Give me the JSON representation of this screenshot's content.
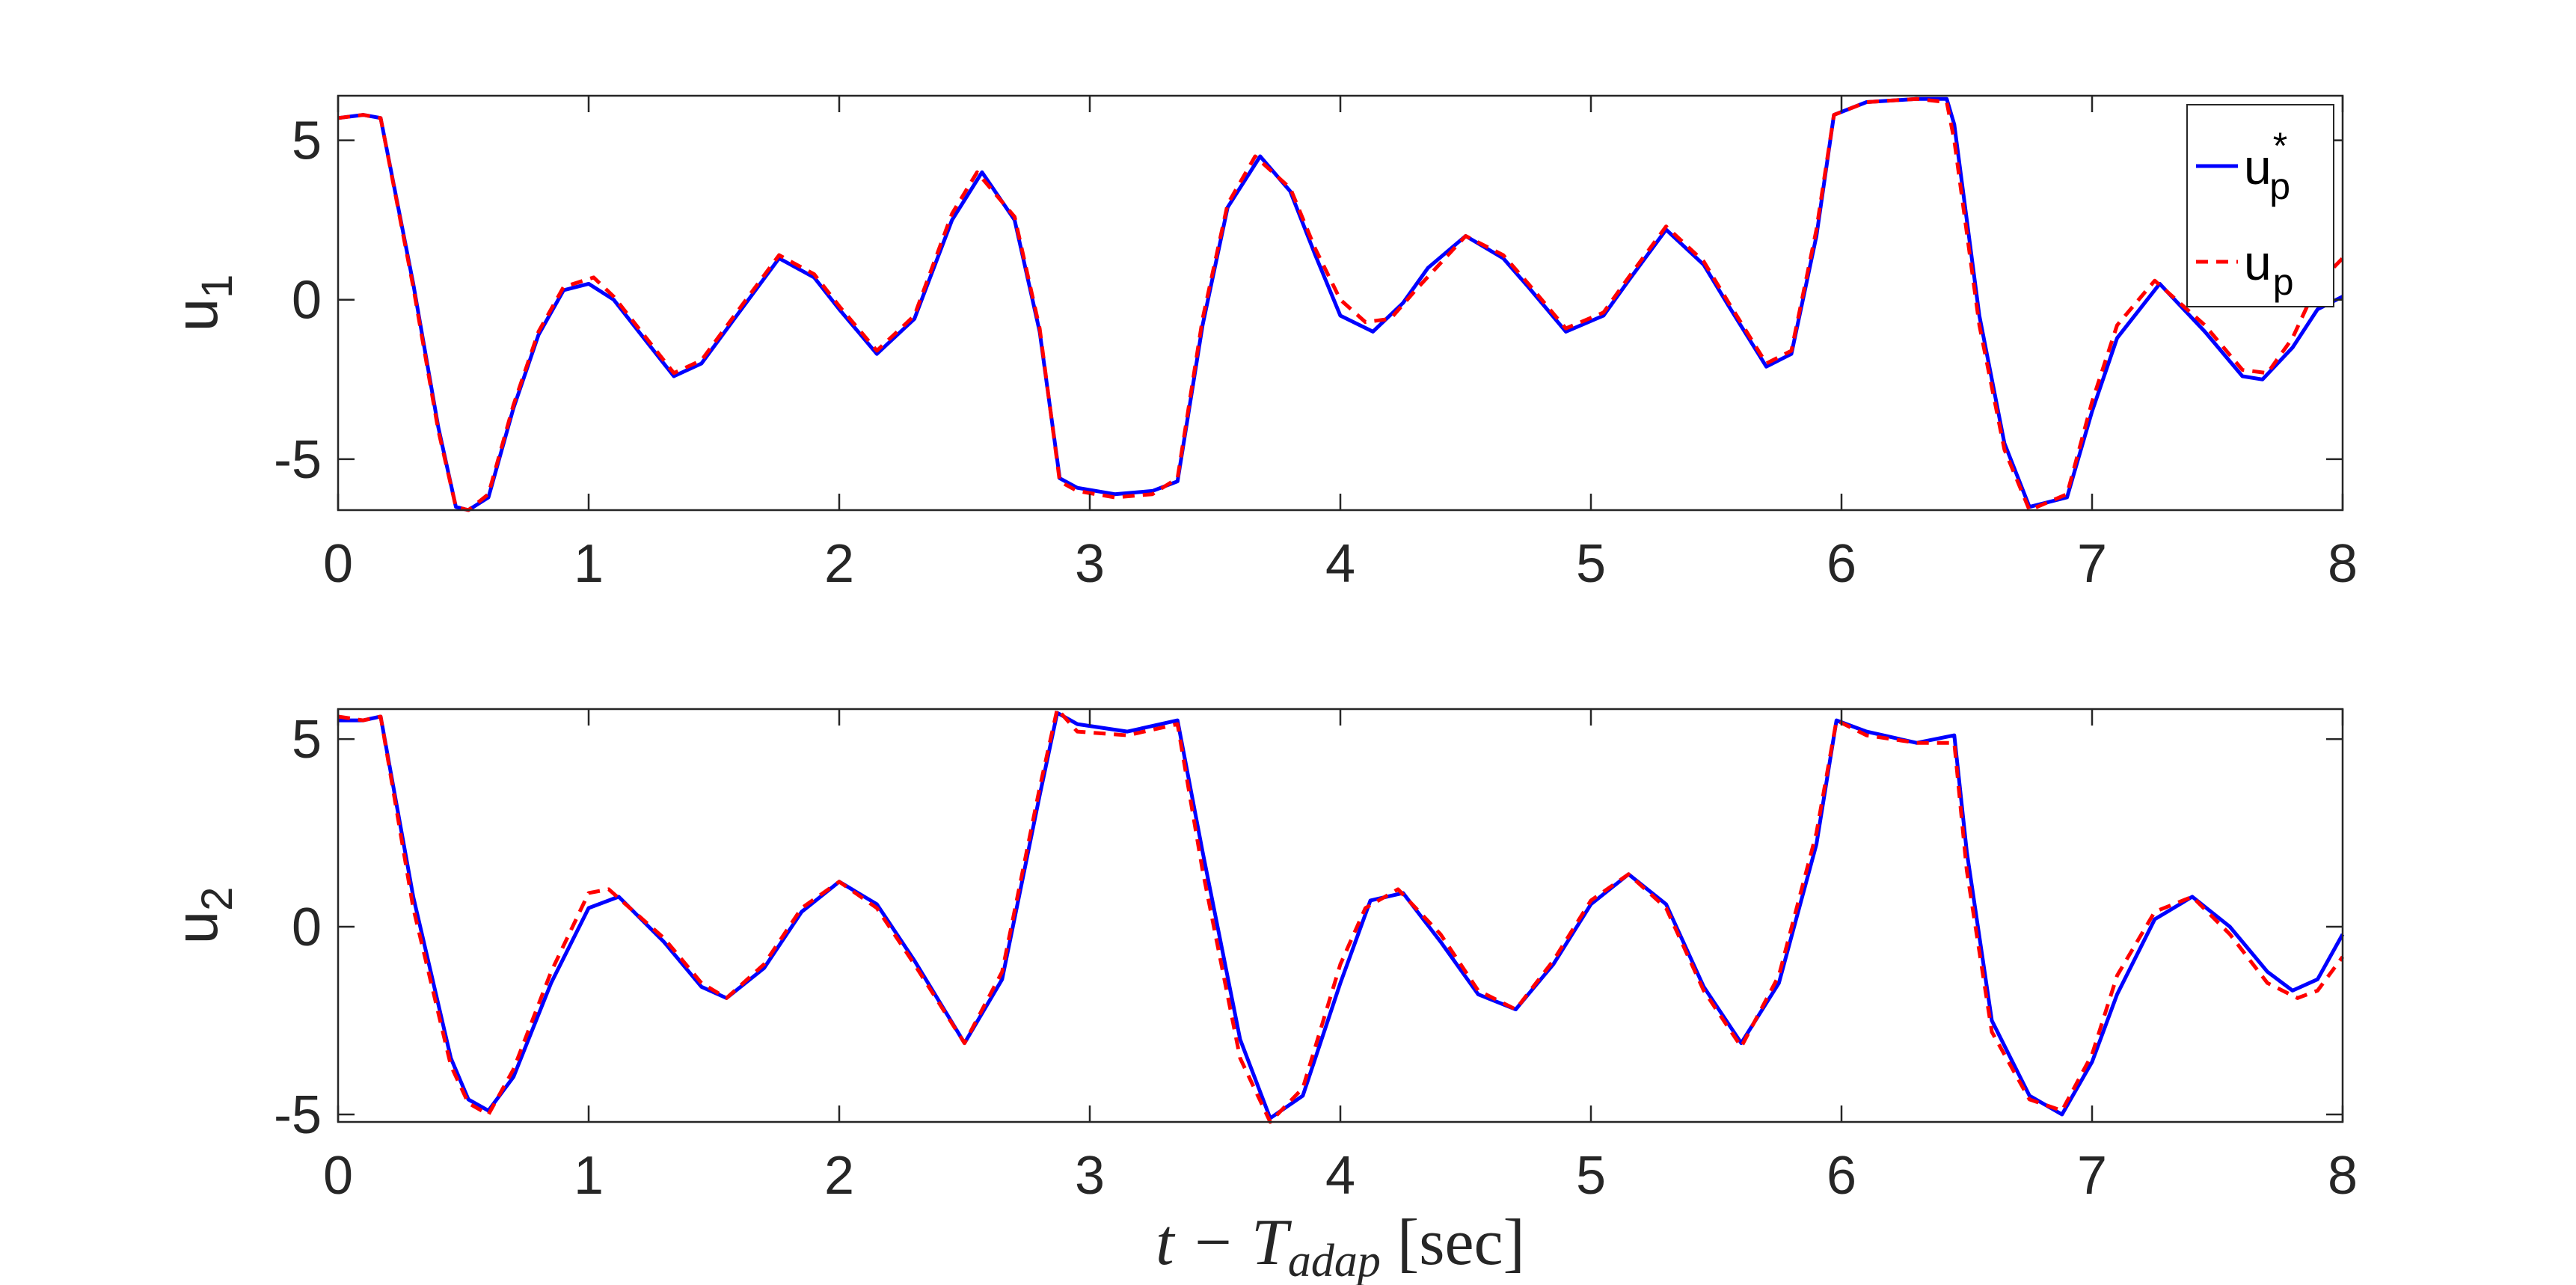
{
  "chart_data": [
    {
      "type": "line",
      "ylabel": "u",
      "ylabel_sub": "1",
      "xlim": [
        0,
        8
      ],
      "ylim": [
        -6.6,
        6.4
      ],
      "xticks": [
        0,
        1,
        2,
        3,
        4,
        5,
        6,
        7,
        8
      ],
      "yticks": [
        -5,
        0,
        5
      ],
      "grid": false,
      "legend": {
        "placement": "top-right",
        "entries": [
          {
            "base": "u",
            "sub": "p",
            "sup": "*"
          },
          {
            "base": "u",
            "sub": "p",
            "sup": ""
          }
        ]
      },
      "series": [
        {
          "color": "#0000ff",
          "dash": "solid",
          "x": [
            0,
            0.1,
            0.17,
            0.3,
            0.4,
            0.47,
            0.52,
            0.6,
            0.7,
            0.8,
            0.9,
            1.0,
            1.1,
            1.2,
            1.34,
            1.45,
            1.6,
            1.76,
            1.9,
            2.0,
            2.15,
            2.3,
            2.45,
            2.57,
            2.7,
            2.8,
            2.88,
            2.95,
            3.1,
            3.25,
            3.35,
            3.45,
            3.55,
            3.68,
            3.8,
            3.9,
            4.0,
            4.13,
            4.25,
            4.35,
            4.5,
            4.65,
            4.75,
            4.9,
            5.05,
            5.15,
            5.3,
            5.45,
            5.55,
            5.7,
            5.8,
            5.9,
            5.97,
            6.1,
            6.3,
            6.42,
            6.45,
            6.55,
            6.65,
            6.75,
            6.9,
            7.0,
            7.1,
            7.27,
            7.45,
            7.6,
            7.68,
            7.8,
            7.9,
            8.0
          ],
          "values": [
            5.7,
            5.8,
            5.7,
            0.5,
            -4.0,
            -6.5,
            -6.6,
            -6.2,
            -3.4,
            -1.1,
            0.3,
            0.5,
            0.0,
            -1.0,
            -2.4,
            -2.0,
            -0.4,
            1.3,
            0.7,
            -0.3,
            -1.7,
            -0.6,
            2.5,
            4.0,
            2.5,
            -1.0,
            -5.6,
            -5.9,
            -6.1,
            -6.0,
            -5.7,
            -0.8,
            2.9,
            4.5,
            3.4,
            1.4,
            -0.5,
            -1.0,
            -0.1,
            1.0,
            2.0,
            1.3,
            0.4,
            -1.0,
            -0.5,
            0.6,
            2.2,
            1.1,
            -0.2,
            -2.1,
            -1.7,
            2.0,
            5.8,
            6.2,
            6.3,
            6.3,
            5.5,
            -0.5,
            -4.5,
            -6.5,
            -6.2,
            -3.5,
            -1.2,
            0.5,
            -1.0,
            -2.4,
            -2.5,
            -1.5,
            -0.3,
            0.1
          ]
        },
        {
          "color": "#ff0000",
          "dash": "dashed",
          "x": [
            0,
            0.1,
            0.17,
            0.3,
            0.4,
            0.47,
            0.52,
            0.6,
            0.7,
            0.8,
            0.9,
            1.02,
            1.1,
            1.2,
            1.34,
            1.45,
            1.6,
            1.76,
            1.9,
            2.0,
            2.15,
            2.3,
            2.45,
            2.55,
            2.7,
            2.8,
            2.88,
            2.95,
            3.1,
            3.25,
            3.35,
            3.45,
            3.55,
            3.66,
            3.8,
            3.9,
            4.0,
            4.1,
            4.2,
            4.3,
            4.5,
            4.65,
            4.75,
            4.9,
            5.05,
            5.15,
            5.3,
            5.45,
            5.55,
            5.7,
            5.8,
            5.9,
            5.97,
            6.1,
            6.3,
            6.42,
            6.45,
            6.55,
            6.65,
            6.75,
            6.9,
            7.0,
            7.1,
            7.25,
            7.45,
            7.6,
            7.7,
            7.8,
            7.9,
            8.0
          ],
          "values": [
            5.7,
            5.8,
            5.7,
            0.4,
            -4.1,
            -6.5,
            -6.6,
            -6.1,
            -3.3,
            -1.0,
            0.4,
            0.7,
            0.1,
            -0.9,
            -2.3,
            -1.9,
            -0.3,
            1.4,
            0.8,
            -0.2,
            -1.6,
            -0.5,
            2.7,
            4.0,
            2.6,
            -0.9,
            -5.7,
            -6.0,
            -6.2,
            -6.1,
            -5.6,
            -0.6,
            3.0,
            4.5,
            3.5,
            1.6,
            0.0,
            -0.7,
            -0.6,
            0.3,
            2.0,
            1.4,
            0.5,
            -0.9,
            -0.4,
            0.7,
            2.3,
            1.2,
            -0.1,
            -2.0,
            -1.6,
            2.2,
            5.8,
            6.2,
            6.3,
            6.2,
            5.0,
            -0.8,
            -4.7,
            -6.6,
            -6.1,
            -3.2,
            -0.8,
            0.6,
            -0.8,
            -2.2,
            -2.3,
            -1.2,
            0.5,
            1.3
          ]
        }
      ]
    },
    {
      "type": "line",
      "ylabel": "u",
      "ylabel_sub": "2",
      "xlim": [
        0,
        8
      ],
      "ylim": [
        -5.2,
        5.8
      ],
      "xticks": [
        0,
        1,
        2,
        3,
        4,
        5,
        6,
        7,
        8
      ],
      "yticks": [
        -5,
        0,
        5
      ],
      "grid": false,
      "xlabel": {
        "base": "t − T",
        "sub": "adap",
        "rest": " [sec]"
      },
      "series": [
        {
          "color": "#0000ff",
          "dash": "solid",
          "x": [
            0,
            0.1,
            0.17,
            0.3,
            0.45,
            0.52,
            0.6,
            0.7,
            0.85,
            1.0,
            1.12,
            1.3,
            1.45,
            1.55,
            1.7,
            1.85,
            2.0,
            2.15,
            2.3,
            2.5,
            2.65,
            2.8,
            2.87,
            2.95,
            3.15,
            3.35,
            3.45,
            3.6,
            3.72,
            3.85,
            4.0,
            4.12,
            4.25,
            4.4,
            4.55,
            4.7,
            4.85,
            5.0,
            5.15,
            5.3,
            5.45,
            5.6,
            5.75,
            5.9,
            5.98,
            6.1,
            6.3,
            6.45,
            6.5,
            6.6,
            6.75,
            6.88,
            7.0,
            7.1,
            7.25,
            7.4,
            7.55,
            7.7,
            7.8,
            7.9,
            8.0
          ],
          "values": [
            5.5,
            5.5,
            5.6,
            0.8,
            -3.5,
            -4.6,
            -4.9,
            -4.0,
            -1.5,
            0.5,
            0.8,
            -0.4,
            -1.6,
            -1.9,
            -1.1,
            0.4,
            1.2,
            0.6,
            -0.9,
            -3.1,
            -1.4,
            3.5,
            5.7,
            5.4,
            5.2,
            5.5,
            2.0,
            -3.0,
            -5.1,
            -4.5,
            -1.5,
            0.7,
            0.9,
            -0.4,
            -1.8,
            -2.2,
            -1.0,
            0.6,
            1.4,
            0.6,
            -1.6,
            -3.1,
            -1.5,
            2.2,
            5.5,
            5.2,
            4.9,
            5.1,
            2.0,
            -2.5,
            -4.5,
            -5.0,
            -3.6,
            -1.8,
            0.2,
            0.8,
            0.0,
            -1.2,
            -1.7,
            -1.4,
            -0.2
          ]
        },
        {
          "color": "#ff0000",
          "dash": "dashed",
          "x": [
            0,
            0.1,
            0.17,
            0.3,
            0.45,
            0.52,
            0.6,
            0.7,
            0.85,
            1.0,
            1.08,
            1.3,
            1.45,
            1.55,
            1.7,
            1.85,
            2.0,
            2.15,
            2.3,
            2.5,
            2.65,
            2.8,
            2.87,
            2.95,
            3.15,
            3.35,
            3.45,
            3.6,
            3.72,
            3.85,
            4.0,
            4.1,
            4.23,
            4.4,
            4.55,
            4.7,
            4.85,
            5.0,
            5.15,
            5.3,
            5.45,
            5.6,
            5.75,
            5.9,
            5.98,
            6.1,
            6.3,
            6.45,
            6.5,
            6.6,
            6.75,
            6.88,
            7.0,
            7.1,
            7.25,
            7.4,
            7.55,
            7.7,
            7.82,
            7.9,
            8.0
          ],
          "values": [
            5.6,
            5.5,
            5.6,
            0.5,
            -3.7,
            -4.7,
            -5.0,
            -3.8,
            -1.2,
            0.9,
            1.0,
            -0.3,
            -1.5,
            -1.9,
            -1.0,
            0.5,
            1.2,
            0.5,
            -1.0,
            -3.1,
            -1.2,
            3.7,
            5.8,
            5.2,
            5.1,
            5.4,
            1.5,
            -3.5,
            -5.2,
            -4.3,
            -1.0,
            0.5,
            1.0,
            -0.2,
            -1.7,
            -2.2,
            -0.9,
            0.7,
            1.4,
            0.5,
            -1.7,
            -3.2,
            -1.3,
            2.5,
            5.5,
            5.1,
            4.9,
            4.9,
            1.5,
            -2.8,
            -4.6,
            -4.9,
            -3.4,
            -1.3,
            0.4,
            0.8,
            -0.2,
            -1.5,
            -1.9,
            -1.7,
            -0.8
          ]
        }
      ]
    }
  ]
}
